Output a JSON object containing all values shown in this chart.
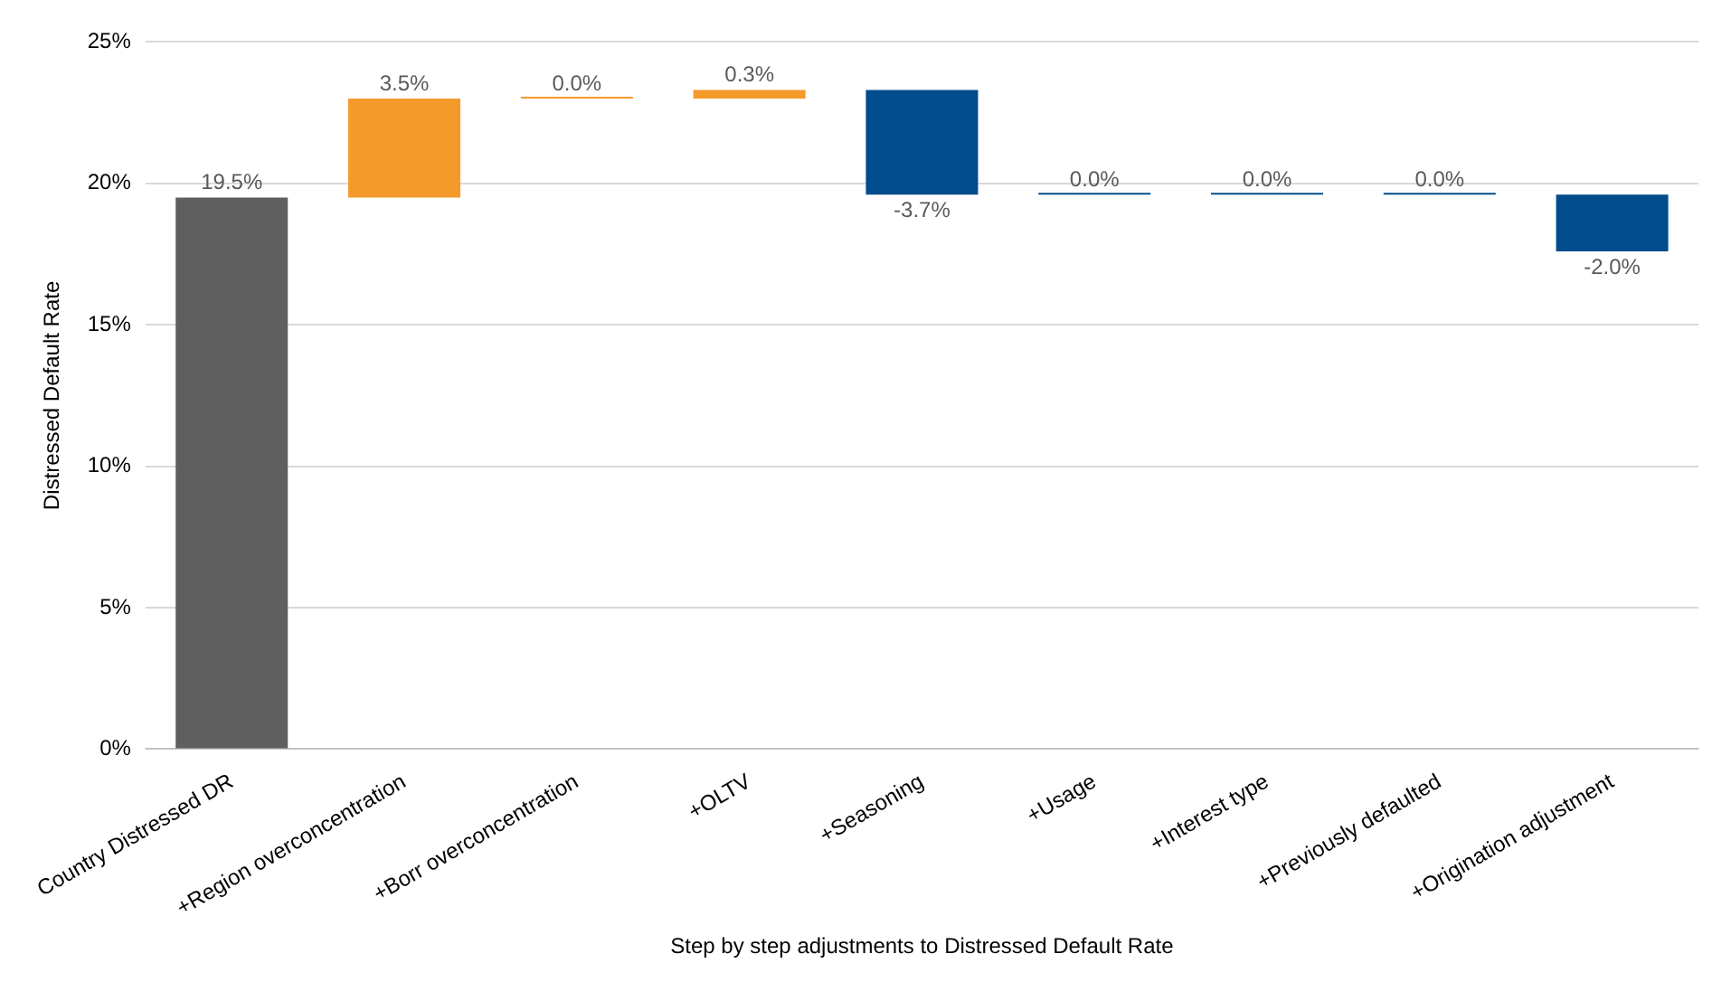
{
  "chart_data": {
    "type": "bar",
    "xlabel": "Step by step adjustments to Distressed Default Rate",
    "ylabel": "Distressed Default Rate",
    "categories": [
      "Country Distressed DR",
      "+Region overconcentration",
      "+Borr overconcentration",
      "+OLTV",
      "+Seasoning",
      "+Usage",
      "+Interest type",
      "+Previously defaulted",
      "+Origination adjustment"
    ],
    "values": [
      19.5,
      3.5,
      0.0,
      0.3,
      -3.7,
      0.0,
      0.0,
      0.0,
      -2.0
    ],
    "base": [
      0,
      19.5,
      23.0,
      23.0,
      23.3,
      19.6,
      19.6,
      19.6,
      19.6
    ],
    "colors": [
      "#5f5f5f",
      "#f39a2b",
      "#f39a2b",
      "#f39a2b",
      "#004c8c",
      "#004c8c",
      "#004c8c",
      "#004c8c",
      "#004c8c"
    ],
    "value_labels": [
      "19.5%",
      "3.5%",
      "0.0%",
      "0.3%",
      "-3.7%",
      "0.0%",
      "0.0%",
      "0.0%",
      "-2.0%"
    ],
    "ylim": [
      0,
      25
    ],
    "yticks": [
      {
        "value": 0,
        "label": "0%"
      },
      {
        "value": 5,
        "label": "5%"
      },
      {
        "value": 10,
        "label": "10%"
      },
      {
        "value": 15,
        "label": "15%"
      },
      {
        "value": 20,
        "label": "20%"
      },
      {
        "value": 25,
        "label": "25%"
      }
    ],
    "grid": "y",
    "legend": false
  }
}
